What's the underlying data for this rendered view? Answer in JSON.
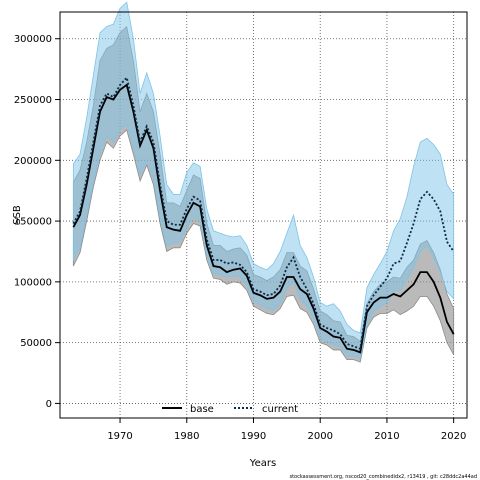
{
  "chart_data": {
    "type": "line",
    "xlabel": "Years",
    "ylabel": "SSB",
    "xlim": [
      1961,
      2022
    ],
    "ylim": [
      -12000,
      322000
    ],
    "x_ticks": [
      1970,
      1980,
      1990,
      2000,
      2010,
      2020
    ],
    "y_ticks": [
      0,
      50000,
      100000,
      150000,
      200000,
      250000,
      300000
    ],
    "grid": true,
    "legend_position": "bottom-center",
    "x": [
      1963,
      1964,
      1965,
      1966,
      1967,
      1968,
      1969,
      1970,
      1971,
      1972,
      1973,
      1974,
      1975,
      1976,
      1977,
      1978,
      1979,
      1980,
      1981,
      1982,
      1983,
      1984,
      1985,
      1986,
      1987,
      1988,
      1989,
      1990,
      1991,
      1992,
      1993,
      1994,
      1995,
      1996,
      1997,
      1998,
      1999,
      2000,
      2001,
      2002,
      2003,
      2004,
      2005,
      2006,
      2007,
      2008,
      2009,
      2010,
      2011,
      2012,
      2013,
      2014,
      2015,
      2016,
      2017,
      2018,
      2019,
      2020
    ],
    "series": [
      {
        "name": "base",
        "line_color": "#000000",
        "band_color": "#8c8c8c",
        "line_style": "solid",
        "values": [
          145000,
          155000,
          180000,
          210000,
          240000,
          252000,
          250000,
          258000,
          262000,
          240000,
          212000,
          225000,
          210000,
          175000,
          145000,
          143000,
          142000,
          155000,
          165000,
          162000,
          130000,
          113000,
          112000,
          108000,
          110000,
          111000,
          105000,
          91000,
          89000,
          86000,
          87000,
          92000,
          104000,
          104000,
          94000,
          90000,
          78000,
          62000,
          59000,
          55000,
          54000,
          45000,
          44000,
          42000,
          75000,
          83000,
          87000,
          87000,
          90000,
          88000,
          93000,
          98000,
          108000,
          108000,
          100000,
          87000,
          67000,
          57000
        ],
        "lower": [
          113000,
          124000,
          150000,
          178000,
          200000,
          215000,
          210000,
          220000,
          225000,
          205000,
          183000,
          196000,
          180000,
          148000,
          125000,
          128000,
          128000,
          140000,
          148000,
          146000,
          118000,
          103000,
          102000,
          98000,
          100000,
          99000,
          93000,
          80000,
          77000,
          74000,
          73000,
          78000,
          88000,
          89000,
          78000,
          75000,
          65000,
          50000,
          48000,
          44000,
          44000,
          36000,
          36000,
          34000,
          62000,
          71000,
          74000,
          74000,
          77000,
          73000,
          76000,
          80000,
          88000,
          88000,
          80000,
          68000,
          50000,
          40000
        ],
        "upper": [
          182000,
          192000,
          215000,
          245000,
          282000,
          292000,
          295000,
          305000,
          310000,
          282000,
          240000,
          255000,
          240000,
          205000,
          165000,
          165000,
          162000,
          175000,
          188000,
          185000,
          148000,
          130000,
          130000,
          125000,
          127000,
          128000,
          122000,
          106000,
          104000,
          101000,
          104000,
          110000,
          124000,
          124000,
          113000,
          109000,
          94000,
          76000,
          73000,
          68000,
          67000,
          56000,
          55000,
          51000,
          82000,
          92000,
          98000,
          100000,
          104000,
          103000,
          112000,
          118000,
          131000,
          134000,
          124000,
          110000,
          90000,
          78000
        ]
      },
      {
        "name": "current",
        "line_color": "#0b2a4a",
        "band_color": "#7dc4e8",
        "line_style": "dotted",
        "values": [
          148000,
          158000,
          185000,
          215000,
          245000,
          255000,
          252000,
          262000,
          268000,
          245000,
          215000,
          228000,
          215000,
          180000,
          150000,
          147000,
          147000,
          160000,
          170000,
          167000,
          135000,
          118000,
          118000,
          115000,
          116000,
          114000,
          108000,
          94000,
          92000,
          89000,
          90000,
          97000,
          112000,
          120000,
          104000,
          94000,
          82000,
          65000,
          62000,
          60000,
          57000,
          49000,
          47000,
          45000,
          80000,
          89000,
          96000,
          103000,
          115000,
          117000,
          132000,
          148000,
          168000,
          174000,
          168000,
          158000,
          133000,
          125000
        ],
        "lower": [
          118000,
          128000,
          155000,
          182000,
          205000,
          220000,
          215000,
          225000,
          230000,
          210000,
          188000,
          200000,
          185000,
          153000,
          130000,
          132000,
          133000,
          145000,
          153000,
          150000,
          122000,
          107000,
          106000,
          104000,
          105000,
          104000,
          97000,
          84000,
          81000,
          78000,
          77000,
          82000,
          95000,
          100000,
          86000,
          80000,
          70000,
          53000,
          51000,
          48000,
          47000,
          39000,
          39000,
          37000,
          65000,
          76000,
          80000,
          83000,
          93000,
          93000,
          102000,
          112000,
          125000,
          130000,
          120000,
          108000,
          92000,
          86000
        ],
        "upper": [
          197000,
          205000,
          235000,
          270000,
          305000,
          310000,
          312000,
          325000,
          330000,
          300000,
          255000,
          272000,
          255000,
          220000,
          180000,
          172000,
          172000,
          190000,
          198000,
          195000,
          160000,
          142000,
          140000,
          138000,
          137000,
          138000,
          130000,
          115000,
          112000,
          110000,
          115000,
          125000,
          140000,
          155000,
          130000,
          120000,
          104000,
          83000,
          80000,
          82000,
          76000,
          65000,
          60000,
          58000,
          95000,
          106000,
          115000,
          125000,
          142000,
          152000,
          170000,
          195000,
          215000,
          218000,
          213000,
          205000,
          180000,
          172000
        ]
      }
    ]
  },
  "footer": "stockassessment.org, nscod20_combinedidx2, r13419 , git: c28ddc2a44ad"
}
